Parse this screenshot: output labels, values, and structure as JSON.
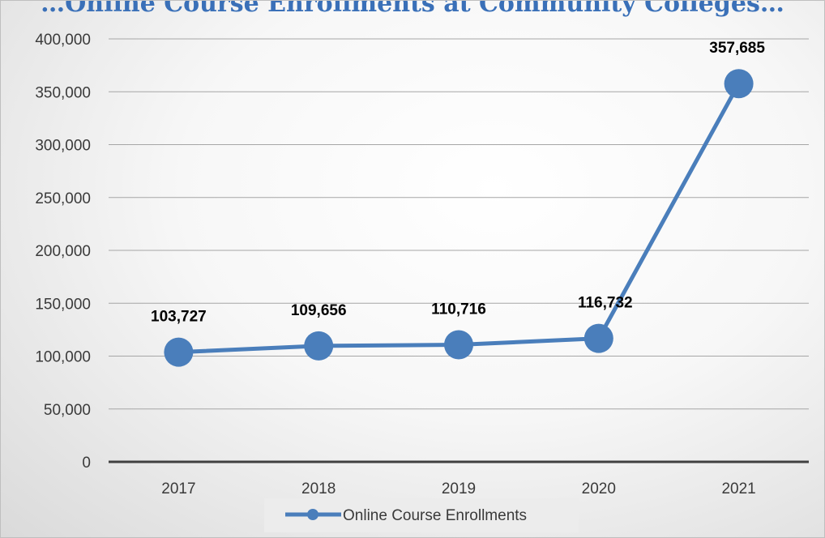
{
  "chart_data": {
    "type": "line",
    "title": "…Online Course Enrollments at Community Colleges…",
    "categories": [
      "2017",
      "2018",
      "2019",
      "2020",
      "2021"
    ],
    "series": [
      {
        "name": "Online Course Enrollments",
        "values": [
          103727,
          109656,
          110716,
          116732,
          357685
        ],
        "data_labels": [
          "103,727",
          "109,656",
          "110,716",
          "116,732",
          "357,685"
        ]
      }
    ],
    "y_ticks": [
      "0",
      "50,000",
      "100,000",
      "150,000",
      "200,000",
      "250,000",
      "300,000",
      "350,000",
      "400,000"
    ],
    "ylim": [
      0,
      400000
    ],
    "grid": true,
    "legend_position": "bottom",
    "colors": {
      "series": "#4a7ebb",
      "grid": "#a6a6a6",
      "axis": "#404040",
      "title": "#3a70b8"
    }
  }
}
